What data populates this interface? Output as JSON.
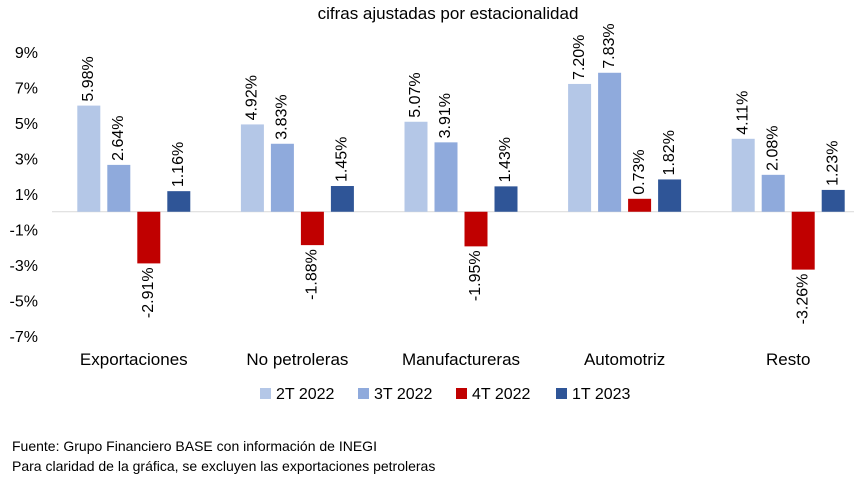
{
  "chart_data": {
    "type": "bar",
    "title": "cifras ajustadas por estacionalidad",
    "categories": [
      "Exportaciones",
      "No petroleras",
      "Manufactureras",
      "Automotriz",
      "Resto"
    ],
    "series": [
      {
        "name": "2T 2022",
        "color": "#b4c7e7",
        "values": [
          5.98,
          4.92,
          5.07,
          7.2,
          4.11
        ]
      },
      {
        "name": "3T 2022",
        "color": "#8faadc",
        "values": [
          2.64,
          3.83,
          3.91,
          7.83,
          2.08
        ]
      },
      {
        "name": "4T 2022",
        "color": "#c00000",
        "values": [
          -2.91,
          -1.88,
          -1.95,
          0.73,
          -3.26
        ]
      },
      {
        "name": "1T 2023",
        "color": "#2f5597",
        "values": [
          1.16,
          1.45,
          1.43,
          1.82,
          1.23
        ]
      }
    ],
    "value_labels": [
      [
        "5.98%",
        "4.92%",
        "5.07%",
        "7.20%",
        "4.11%"
      ],
      [
        "2.64%",
        "3.83%",
        "3.91%",
        "7.83%",
        "2.08%"
      ],
      [
        "-2.91%",
        "-1.88%",
        "-1.95%",
        "0.73%",
        "-3.26%"
      ],
      [
        "1.16%",
        "1.45%",
        "1.43%",
        "1.82%",
        "1.23%"
      ]
    ],
    "yticks": [
      9,
      7,
      5,
      3,
      1,
      -1,
      -3,
      -5,
      -7
    ],
    "ytick_labels": [
      "9%",
      "7%",
      "5%",
      "3%",
      "1%",
      "-1%",
      "-3%",
      "-5%",
      "-7%"
    ],
    "ylim": [
      -7,
      9
    ],
    "grid": false,
    "legend_position": "bottom"
  },
  "notes": {
    "source": "Fuente: Grupo Financiero BASE con información de INEGI",
    "clarification": "Para claridad de la gráfica, se excluyen las exportaciones petroleras"
  }
}
